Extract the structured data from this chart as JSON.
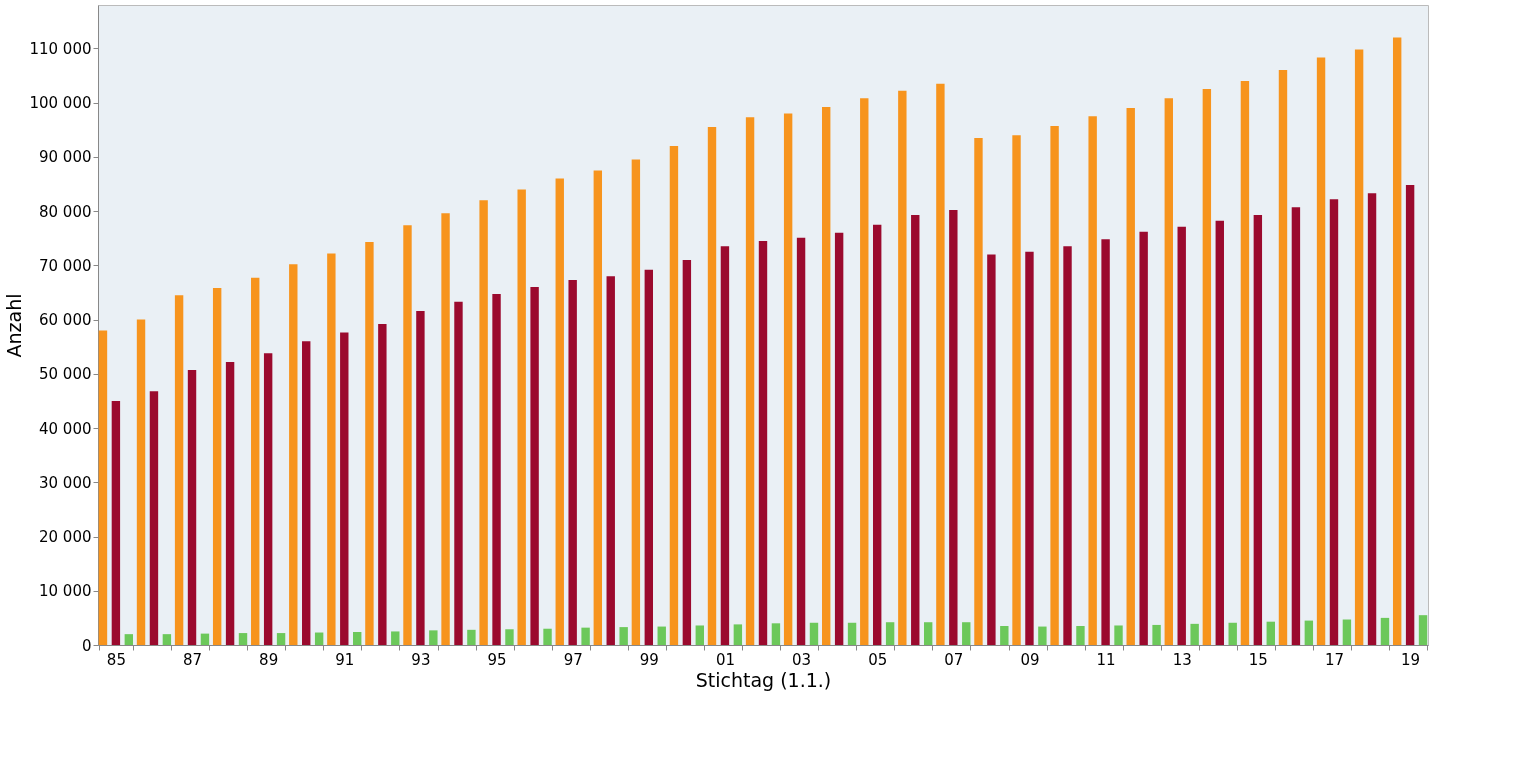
{
  "chart_data": {
    "type": "bar",
    "xlabel": "Stichtag (1.1.)",
    "ylabel": "Anzahl",
    "categories": [
      "85",
      null,
      "87",
      null,
      "89",
      null,
      "91",
      null,
      "93",
      null,
      "95",
      null,
      "97",
      null,
      "99",
      null,
      "01",
      null,
      "03",
      null,
      "05",
      null,
      "07",
      null,
      "09",
      null,
      "11",
      null,
      "13",
      null,
      "15",
      null,
      "17",
      null,
      "19"
    ],
    "series": [
      {
        "color": "#f7941d",
        "values": [
          58000,
          60000,
          64500,
          65800,
          67700,
          70200,
          72200,
          74300,
          77400,
          79600,
          82000,
          84000,
          86000,
          87500,
          89500,
          92000,
          95500,
          97300,
          98000,
          99200,
          100800,
          102200,
          103500,
          93500,
          94000,
          95700,
          97500,
          99000,
          100800,
          102500,
          104000,
          106000,
          108300,
          109800,
          112000
        ]
      },
      {
        "color": "#9b0a2e",
        "values": [
          45000,
          46800,
          50700,
          52200,
          53800,
          56000,
          57600,
          59200,
          61600,
          63300,
          64700,
          66000,
          67300,
          68000,
          69200,
          71000,
          73500,
          74500,
          75100,
          76000,
          77500,
          79300,
          80200,
          72000,
          72500,
          73500,
          74800,
          76200,
          77100,
          78200,
          79300,
          80700,
          82200,
          83300,
          84800
        ]
      },
      {
        "color": "#6cc85a",
        "values": [
          2000,
          2000,
          2100,
          2200,
          2200,
          2300,
          2400,
          2500,
          2700,
          2800,
          2900,
          3000,
          3200,
          3300,
          3400,
          3600,
          3800,
          4000,
          4100,
          4100,
          4200,
          4200,
          4200,
          3500,
          3400,
          3500,
          3600,
          3700,
          3900,
          4100,
          4300,
          4500,
          4700,
          5000,
          5500
        ]
      }
    ],
    "ylim": [
      0,
      118000
    ],
    "yticks": [
      {
        "value": 0,
        "label": "0"
      },
      {
        "value": 10000,
        "label": "10 000"
      },
      {
        "value": 20000,
        "label": "20 000"
      },
      {
        "value": 30000,
        "label": "30 000"
      },
      {
        "value": 40000,
        "label": "40 000"
      },
      {
        "value": 50000,
        "label": "50 000"
      },
      {
        "value": 60000,
        "label": "60 000"
      },
      {
        "value": 70000,
        "label": "70 000"
      },
      {
        "value": 80000,
        "label": "80 000"
      },
      {
        "value": 90000,
        "label": "90 000"
      },
      {
        "value": 100000,
        "label": "100 000"
      },
      {
        "value": 110000,
        "label": "110 000"
      }
    ],
    "grid": false,
    "legend": false
  }
}
